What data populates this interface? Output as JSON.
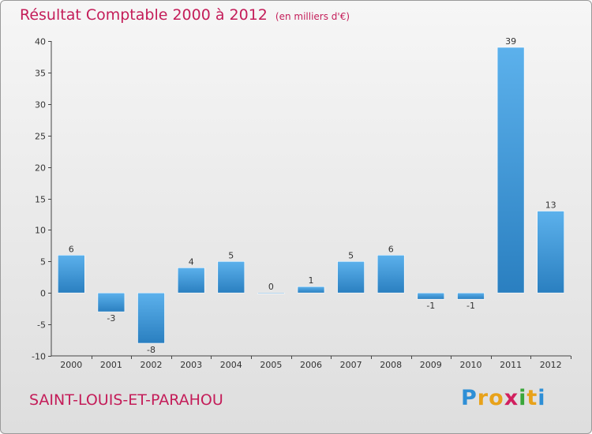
{
  "chart_data": {
    "type": "bar",
    "title": "Résultat Comptable 2000 à 2012",
    "subtitle": "(en milliers d'€)",
    "categories": [
      "2000",
      "2001",
      "2002",
      "2003",
      "2004",
      "2005",
      "2006",
      "2007",
      "2008",
      "2009",
      "2010",
      "2011",
      "2012"
    ],
    "values": [
      6,
      -3,
      -8,
      4,
      5,
      0,
      1,
      5,
      6,
      -1,
      -1,
      39,
      13
    ],
    "ylim": [
      -10,
      40
    ],
    "yticks": [
      -10,
      -5,
      0,
      5,
      10,
      15,
      20,
      25,
      30,
      35,
      40
    ],
    "grid": false,
    "xlabel": "",
    "ylabel": ""
  },
  "commune": "SAINT-LOUIS-ET-PARAHOU",
  "brand": {
    "letters": [
      "P",
      "r",
      "o",
      "x",
      "i",
      "t",
      "i"
    ],
    "colors": [
      "#2e8fd6",
      "#e8a21a",
      "#e8a21a",
      "#d11f5e",
      "#3aa63a",
      "#e8a21a",
      "#2e8fd6"
    ]
  },
  "colors": {
    "bar_light": "#5cb1ec",
    "bar_dark": "#2a7fc0",
    "axis": "#444444"
  }
}
